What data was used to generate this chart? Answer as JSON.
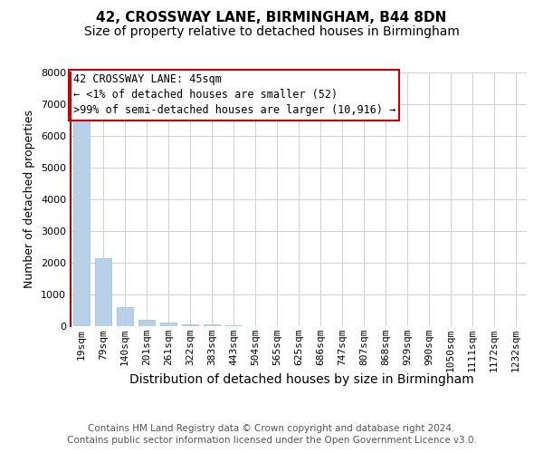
{
  "title1": "42, CROSSWAY LANE, BIRMINGHAM, B44 8DN",
  "title2": "Size of property relative to detached houses in Birmingham",
  "xlabel": "Distribution of detached houses by size in Birmingham",
  "ylabel": "Number of detached properties",
  "annotation_line1": "42 CROSSWAY LANE: 45sqm",
  "annotation_line2": "← <1% of detached houses are smaller (52)",
  "annotation_line3": ">99% of semi-detached houses are larger (10,916) →",
  "footnote1": "Contains HM Land Registry data © Crown copyright and database right 2024.",
  "footnote2": "Contains public sector information licensed under the Open Government Licence v3.0.",
  "categories": [
    "19sqm",
    "79sqm",
    "140sqm",
    "201sqm",
    "261sqm",
    "322sqm",
    "383sqm",
    "443sqm",
    "504sqm",
    "565sqm",
    "625sqm",
    "686sqm",
    "747sqm",
    "807sqm",
    "868sqm",
    "929sqm",
    "990sqm",
    "1050sqm",
    "1111sqm",
    "1172sqm",
    "1232sqm"
  ],
  "values": [
    6520,
    2150,
    600,
    210,
    110,
    70,
    50,
    30,
    5,
    0,
    0,
    0,
    0,
    0,
    0,
    0,
    0,
    0,
    0,
    0,
    0
  ],
  "bar_color": "#b8d0e8",
  "bar_edge_color": "#a0bcd8",
  "redline_color": "#cc0000",
  "annotation_box_edgecolor": "#cc0000",
  "ylim": [
    0,
    8000
  ],
  "yticks": [
    0,
    1000,
    2000,
    3000,
    4000,
    5000,
    6000,
    7000,
    8000
  ],
  "grid_color": "#d0d0d0",
  "background_color": "#ffffff",
  "title1_fontsize": 11,
  "title2_fontsize": 10,
  "xlabel_fontsize": 10,
  "ylabel_fontsize": 9,
  "tick_fontsize": 8,
  "annotation_fontsize": 8.5,
  "footnote_fontsize": 7.5
}
